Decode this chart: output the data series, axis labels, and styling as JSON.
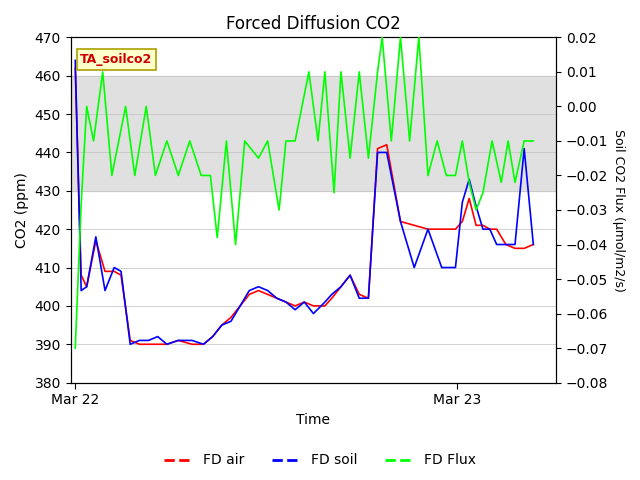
{
  "title": "Forced Diffusion CO2",
  "xlabel": "Time",
  "ylabel_left": "CO2 (ppm)",
  "ylabel_right": "Soil CO2 Flux (μmol/m2/s)",
  "ylim_left": [
    380,
    470
  ],
  "ylim_right": [
    -0.08,
    0.02
  ],
  "yticks_left": [
    380,
    390,
    400,
    410,
    420,
    430,
    440,
    450,
    460,
    470
  ],
  "yticks_right": [
    -0.08,
    -0.07,
    -0.06,
    -0.05,
    -0.04,
    -0.03,
    -0.02,
    -0.01,
    0.0,
    0.01,
    0.02
  ],
  "annotation_label": "TA_soilco2",
  "annotation_color": "#cc0000",
  "annotation_bg": "#ffffcc",
  "shaded_band": [
    430,
    460
  ],
  "shaded_color": "#e0e0e0",
  "legend_labels": [
    "FD air",
    "FD soil",
    "FD Flux"
  ],
  "color_air": "#ff0000",
  "color_soil": "#0000ff",
  "color_flux": "#00ff00",
  "fd_air_x": [
    0.0,
    0.013,
    0.025,
    0.045,
    0.065,
    0.085,
    0.1,
    0.12,
    0.14,
    0.16,
    0.18,
    0.2,
    0.225,
    0.255,
    0.28,
    0.3,
    0.32,
    0.34,
    0.36,
    0.38,
    0.4,
    0.42,
    0.44,
    0.46,
    0.48,
    0.5,
    0.52,
    0.545,
    0.56,
    0.58,
    0.6,
    0.62,
    0.64,
    0.66,
    0.68,
    0.71,
    0.74,
    0.77,
    0.8,
    0.83,
    0.845,
    0.86,
    0.875,
    0.89,
    0.905,
    0.92,
    0.94,
    0.96,
    0.98,
    1.0
  ],
  "fd_air_y": [
    462,
    408,
    405,
    417,
    409,
    409,
    408,
    391,
    390,
    390,
    390,
    390,
    391,
    390,
    390,
    392,
    395,
    397,
    400,
    403,
    404,
    403,
    402,
    401,
    400,
    401,
    400,
    400,
    402,
    405,
    408,
    403,
    402,
    441,
    442,
    422,
    421,
    420,
    420,
    420,
    422,
    428,
    421,
    421,
    420,
    420,
    416,
    415,
    415,
    416
  ],
  "fd_soil_x": [
    0.0,
    0.013,
    0.025,
    0.045,
    0.065,
    0.085,
    0.1,
    0.12,
    0.14,
    0.16,
    0.18,
    0.2,
    0.225,
    0.255,
    0.28,
    0.3,
    0.32,
    0.34,
    0.36,
    0.38,
    0.4,
    0.42,
    0.44,
    0.46,
    0.48,
    0.5,
    0.52,
    0.545,
    0.56,
    0.58,
    0.6,
    0.62,
    0.64,
    0.66,
    0.68,
    0.71,
    0.74,
    0.77,
    0.8,
    0.83,
    0.845,
    0.86,
    0.875,
    0.89,
    0.905,
    0.92,
    0.94,
    0.96,
    0.98,
    1.0
  ],
  "fd_soil_y": [
    464,
    404,
    405,
    418,
    404,
    410,
    409,
    390,
    391,
    391,
    392,
    390,
    391,
    391,
    390,
    392,
    395,
    396,
    400,
    404,
    405,
    404,
    402,
    401,
    399,
    401,
    398,
    401,
    403,
    405,
    408,
    402,
    402,
    440,
    440,
    422,
    410,
    420,
    410,
    410,
    427,
    433,
    426,
    420,
    420,
    416,
    416,
    416,
    441,
    416
  ],
  "fd_flux_x": [
    0.0,
    0.013,
    0.025,
    0.04,
    0.06,
    0.08,
    0.11,
    0.13,
    0.155,
    0.175,
    0.2,
    0.225,
    0.25,
    0.275,
    0.295,
    0.31,
    0.33,
    0.35,
    0.37,
    0.4,
    0.42,
    0.445,
    0.46,
    0.48,
    0.51,
    0.53,
    0.545,
    0.565,
    0.58,
    0.6,
    0.62,
    0.64,
    0.66,
    0.67,
    0.69,
    0.71,
    0.73,
    0.75,
    0.77,
    0.79,
    0.81,
    0.83,
    0.845,
    0.86,
    0.875,
    0.89,
    0.91,
    0.93,
    0.945,
    0.96,
    0.98,
    1.0
  ],
  "fd_flux_y": [
    -0.07,
    -0.028,
    0.0,
    -0.01,
    0.01,
    -0.02,
    0.0,
    -0.02,
    0.0,
    -0.02,
    -0.01,
    -0.02,
    -0.01,
    -0.02,
    -0.02,
    -0.038,
    -0.01,
    -0.04,
    -0.01,
    -0.015,
    -0.01,
    -0.03,
    -0.01,
    -0.01,
    0.01,
    -0.01,
    0.01,
    -0.025,
    0.01,
    -0.015,
    0.01,
    -0.015,
    0.01,
    0.02,
    -0.01,
    0.02,
    -0.01,
    0.02,
    -0.02,
    -0.01,
    -0.02,
    -0.02,
    -0.01,
    -0.022,
    -0.03,
    -0.025,
    -0.01,
    -0.022,
    -0.01,
    -0.022,
    -0.01,
    -0.01
  ]
}
